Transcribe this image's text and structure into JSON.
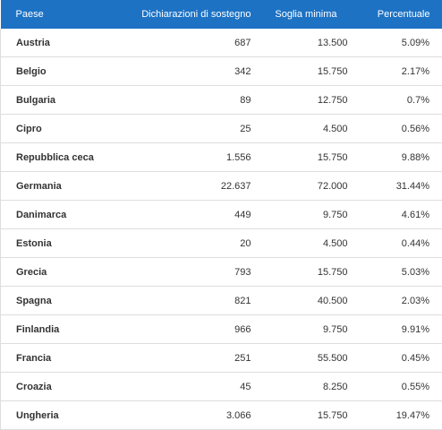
{
  "table": {
    "headers": [
      "Paese",
      "Dichiarazioni di sostegno",
      "Soglia minima",
      "Percentuale"
    ],
    "rows": [
      [
        "Austria",
        "687",
        "13.500",
        "5.09%"
      ],
      [
        "Belgio",
        "342",
        "15.750",
        "2.17%"
      ],
      [
        "Bulgaria",
        "89",
        "12.750",
        "0.7%"
      ],
      [
        "Cipro",
        "25",
        "4.500",
        "0.56%"
      ],
      [
        "Repubblica ceca",
        "1.556",
        "15.750",
        "9.88%"
      ],
      [
        "Germania",
        "22.637",
        "72.000",
        "31.44%"
      ],
      [
        "Danimarca",
        "449",
        "9.750",
        "4.61%"
      ],
      [
        "Estonia",
        "20",
        "4.500",
        "0.44%"
      ],
      [
        "Grecia",
        "793",
        "15.750",
        "5.03%"
      ],
      [
        "Spagna",
        "821",
        "40.500",
        "2.03%"
      ],
      [
        "Finlandia",
        "966",
        "9.750",
        "9.91%"
      ],
      [
        "Francia",
        "251",
        "55.500",
        "0.45%"
      ],
      [
        "Croazia",
        "45",
        "8.250",
        "0.55%"
      ],
      [
        "Ungheria",
        "3.066",
        "15.750",
        "19.47%"
      ]
    ]
  }
}
